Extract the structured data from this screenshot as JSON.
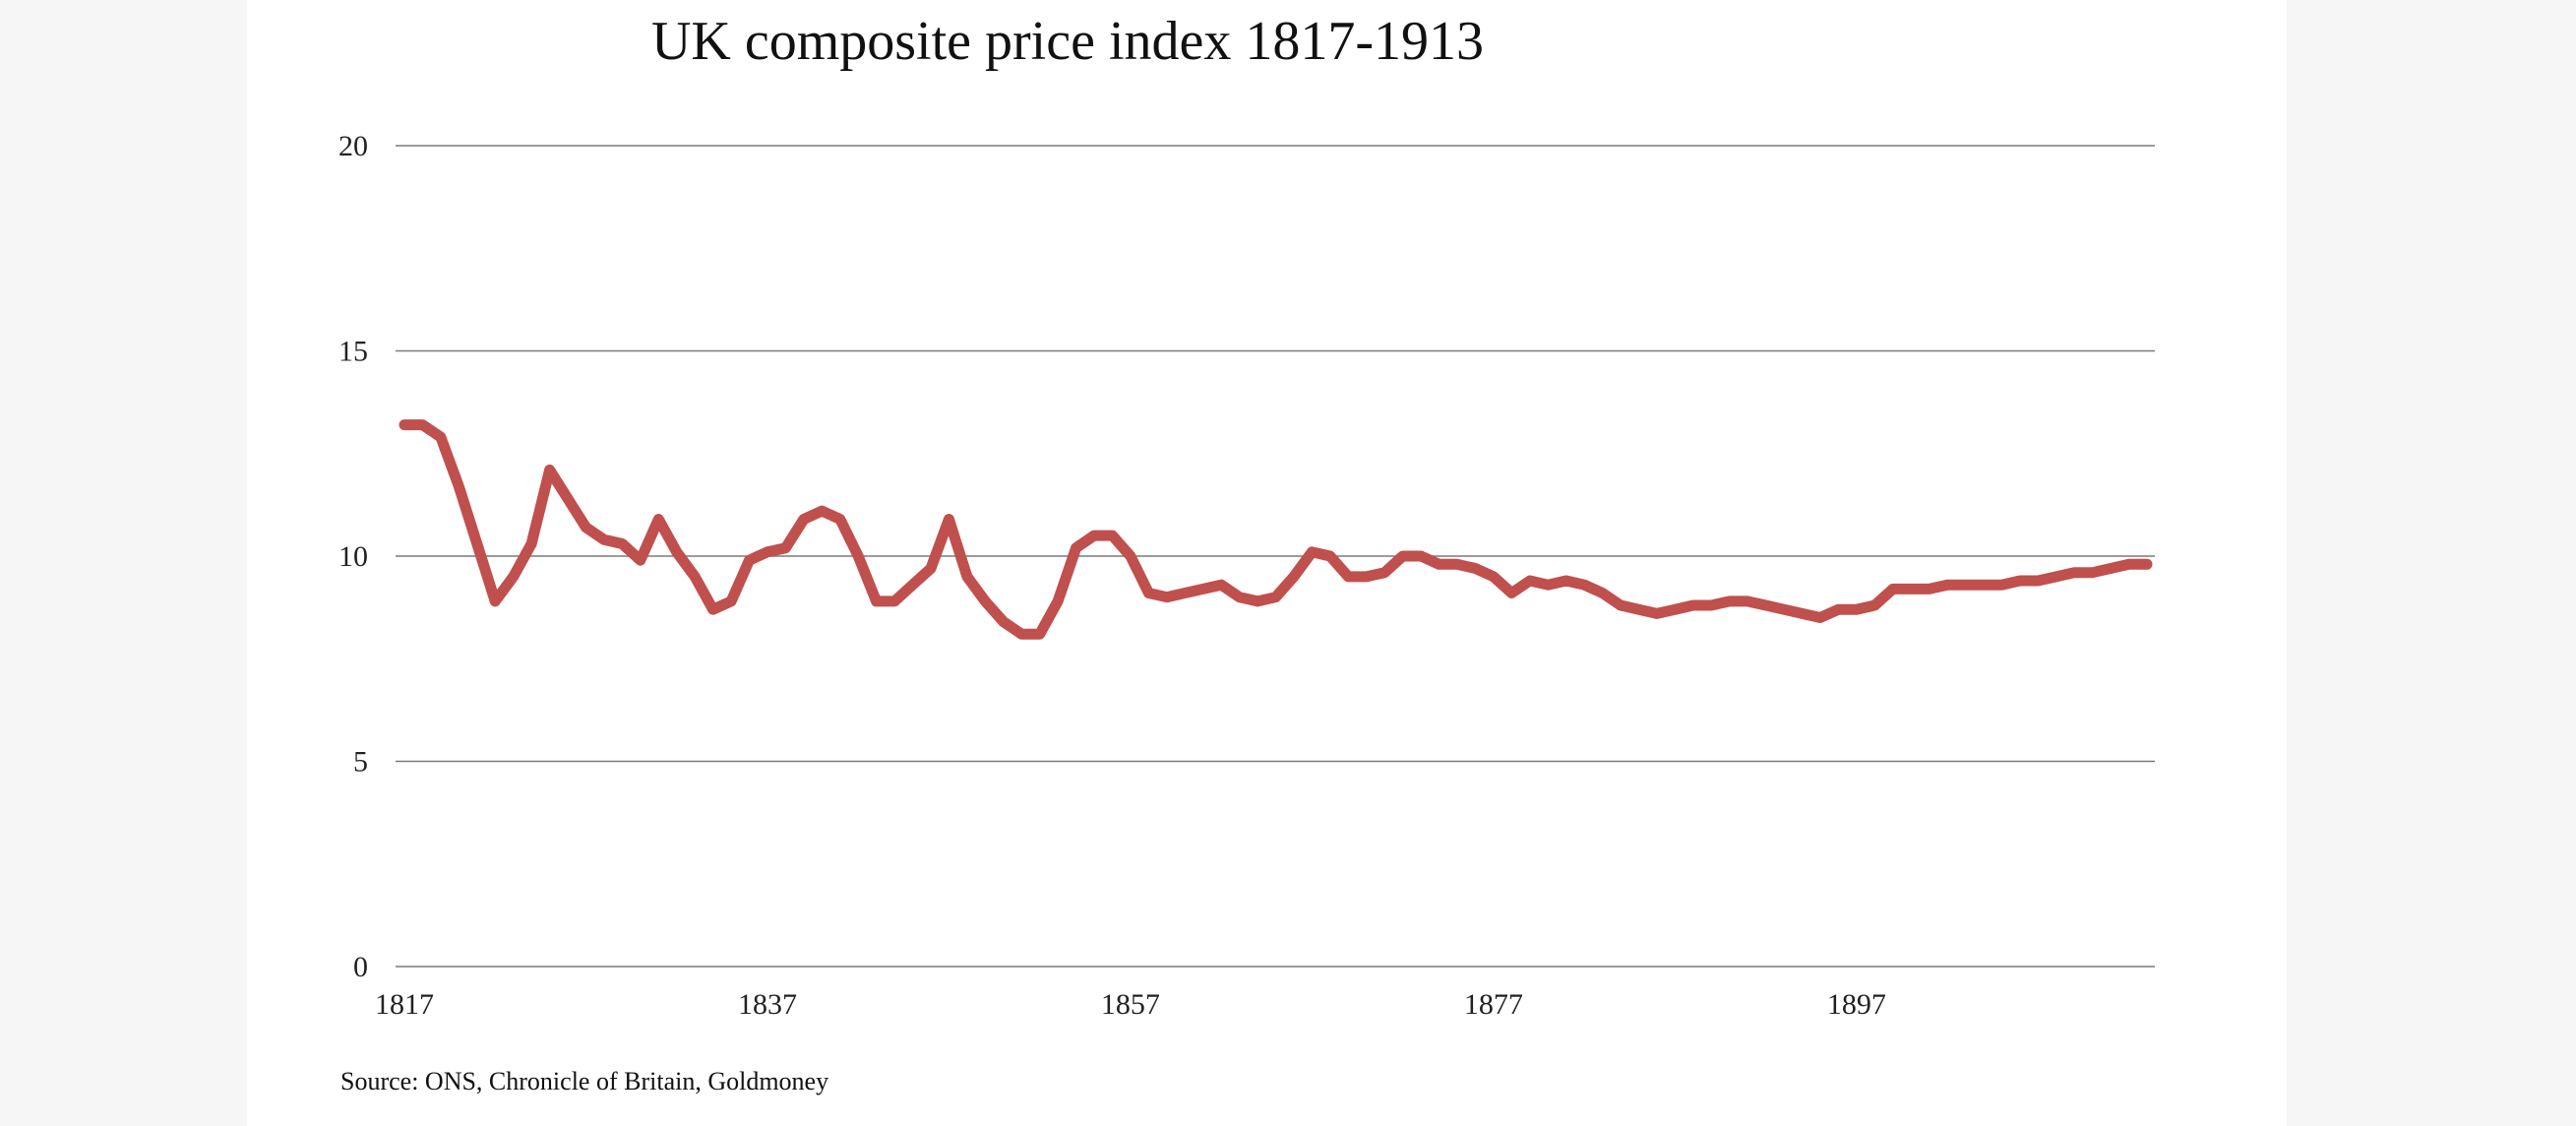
{
  "chart_data": {
    "type": "line",
    "title": "UK composite price index 1817-1913",
    "xlabel": "",
    "ylabel": "",
    "ylim": [
      0,
      20
    ],
    "xlim": [
      1817,
      1913
    ],
    "y_ticks": [
      0,
      5,
      10,
      15,
      20
    ],
    "x_ticks": [
      1817,
      1837,
      1857,
      1877,
      1897
    ],
    "grid": "horizontal",
    "legend": "none",
    "series_color": "#c0504d",
    "source": "Source: ONS, Chronicle of Britain, Goldmoney",
    "x": [
      1817,
      1818,
      1819,
      1820,
      1821,
      1822,
      1823,
      1824,
      1825,
      1826,
      1827,
      1828,
      1829,
      1830,
      1831,
      1832,
      1833,
      1834,
      1835,
      1836,
      1837,
      1838,
      1839,
      1840,
      1841,
      1842,
      1843,
      1844,
      1845,
      1846,
      1847,
      1848,
      1849,
      1850,
      1851,
      1852,
      1853,
      1854,
      1855,
      1856,
      1857,
      1858,
      1859,
      1860,
      1861,
      1862,
      1863,
      1864,
      1865,
      1866,
      1867,
      1868,
      1869,
      1870,
      1871,
      1872,
      1873,
      1874,
      1875,
      1876,
      1877,
      1878,
      1879,
      1880,
      1881,
      1882,
      1883,
      1884,
      1885,
      1886,
      1887,
      1888,
      1889,
      1890,
      1891,
      1892,
      1893,
      1894,
      1895,
      1896,
      1897,
      1898,
      1899,
      1900,
      1901,
      1902,
      1903,
      1904,
      1905,
      1906,
      1907,
      1908,
      1909,
      1910,
      1911,
      1912,
      1913
    ],
    "series": [
      {
        "values": [
          13.2,
          13.2,
          12.9,
          11.7,
          10.3,
          8.9,
          9.5,
          10.3,
          12.1,
          11.4,
          10.7,
          10.4,
          10.3,
          9.9,
          10.9,
          10.1,
          9.5,
          8.7,
          8.9,
          9.9,
          10.1,
          10.2,
          10.9,
          11.1,
          10.9,
          10.0,
          8.9,
          8.9,
          9.3,
          9.7,
          10.9,
          9.5,
          8.9,
          8.4,
          8.1,
          8.1,
          8.9,
          10.2,
          10.5,
          10.5,
          10.0,
          9.1,
          9.0,
          9.1,
          9.2,
          9.3,
          9.0,
          8.9,
          9.0,
          9.5,
          10.1,
          10.0,
          9.5,
          9.5,
          9.6,
          10.0,
          10.0,
          9.8,
          9.8,
          9.7,
          9.5,
          9.1,
          9.4,
          9.3,
          9.4,
          9.3,
          9.1,
          8.8,
          8.7,
          8.6,
          8.7,
          8.8,
          8.8,
          8.9,
          8.9,
          8.8,
          8.7,
          8.6,
          8.5,
          8.7,
          8.7,
          8.8,
          9.2,
          9.2,
          9.2,
          9.3,
          9.3,
          9.3,
          9.3,
          9.4,
          9.4,
          9.5,
          9.6,
          9.6,
          9.7,
          9.8,
          9.8
        ]
      }
    ]
  }
}
